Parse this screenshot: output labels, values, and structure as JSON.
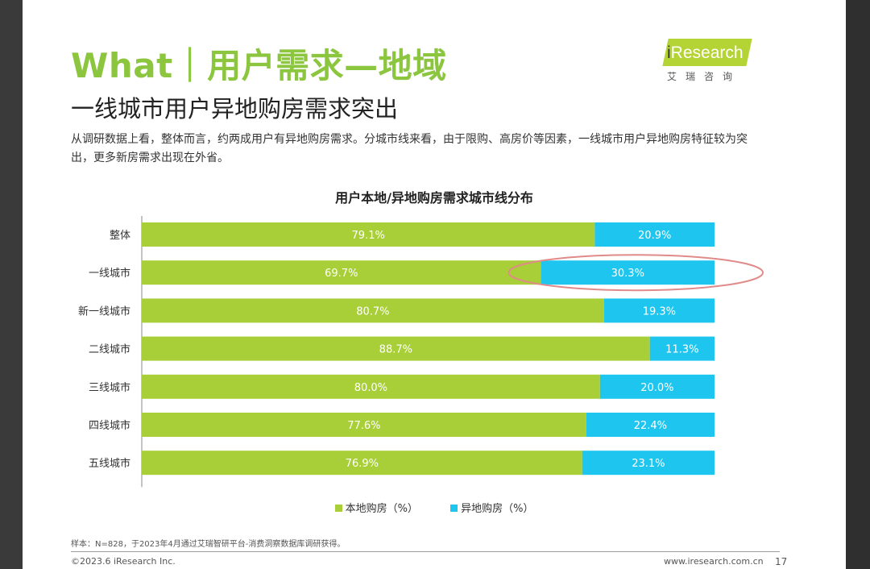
{
  "header": {
    "title": "What｜用户需求—地域",
    "subtitle": "一线城市用户异地购房需求突出",
    "description": "从调研数据上看，整体而言，约两成用户有异地购房需求。分城市线来看，由于限购、高房价等因素，一线城市用户异地购房特征较为突出，更多新房需求出现在外省。"
  },
  "logo": {
    "brand_i": "i",
    "brand_rest": "Research",
    "brand_cn": "艾瑞咨询",
    "color": "#b4d335"
  },
  "chart_data": {
    "type": "bar",
    "orientation": "horizontal",
    "stacked": true,
    "title": "用户本地/异地购房需求城市线分布",
    "categories": [
      "整体",
      "一线城市",
      "新一线城市",
      "二线城市",
      "三线城市",
      "四线城市",
      "五线城市"
    ],
    "series": [
      {
        "name": "本地购房（%）",
        "color": "#a8cf38",
        "values": [
          79.1,
          69.7,
          80.7,
          88.7,
          80.0,
          77.6,
          76.9
        ]
      },
      {
        "name": "异地购房（%）",
        "color": "#1ec6ef",
        "values": [
          20.9,
          30.3,
          19.3,
          11.3,
          20.0,
          22.4,
          23.1
        ]
      }
    ],
    "xlim": [
      0,
      100
    ],
    "grid": false,
    "legend_position": "bottom",
    "highlight_category": "一线城市",
    "highlight_color": "#e08a8a"
  },
  "footer": {
    "note": "样本：N=828，于2023年4月通过艾瑞智研平台-消费洞察数据库调研获得。",
    "copyright": "©2023.6 iResearch Inc.",
    "website": "www.iresearch.com.cn",
    "page": "17"
  }
}
